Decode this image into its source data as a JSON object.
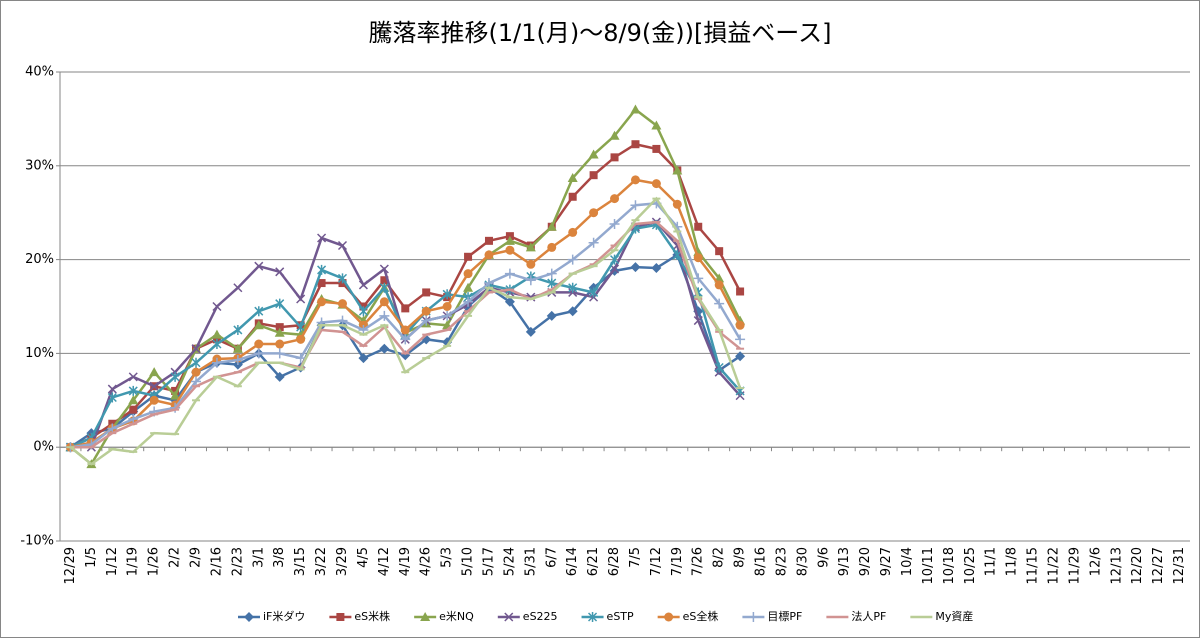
{
  "chart_data": {
    "type": "line",
    "title": "騰落率推移(1/1(月)～8/9(金))[損益ベース]",
    "categories": [
      "12/29",
      "1/5",
      "1/12",
      "1/19",
      "1/26",
      "2/2",
      "2/9",
      "2/16",
      "2/23",
      "3/1",
      "3/8",
      "3/15",
      "3/22",
      "3/29",
      "4/5",
      "4/12",
      "4/19",
      "4/26",
      "5/3",
      "5/10",
      "5/17",
      "5/24",
      "5/31",
      "6/7",
      "6/14",
      "6/21",
      "6/28",
      "7/5",
      "7/12",
      "7/19",
      "7/26",
      "8/2",
      "8/9",
      "8/16",
      "8/23",
      "8/30",
      "9/6",
      "9/13",
      "9/20",
      "9/27",
      "10/4",
      "10/11",
      "10/18",
      "10/25",
      "11/1",
      "11/8",
      "11/15",
      "11/22",
      "11/29",
      "12/6",
      "12/13",
      "12/20",
      "12/27",
      "12/31"
    ],
    "ylim": [
      -10,
      40
    ],
    "yticks": [
      {
        "value": -10,
        "label": "-10%"
      },
      {
        "value": 0,
        "label": "0%"
      },
      {
        "value": 10,
        "label": "10%"
      },
      {
        "value": 20,
        "label": "20%"
      },
      {
        "value": 30,
        "label": "30%"
      },
      {
        "value": 40,
        "label": "40%"
      }
    ],
    "grid": true,
    "legend": "bottom",
    "series": [
      {
        "name": "iF米ダウ",
        "color": "#4572a7",
        "marker": "diamond",
        "values": [
          0,
          1.5,
          2.0,
          3.8,
          5.5,
          5.0,
          8.0,
          9.0,
          8.8,
          10.0,
          7.5,
          8.5,
          13.0,
          13.0,
          9.5,
          10.5,
          9.8,
          11.5,
          11.2,
          15.0,
          17.0,
          15.5,
          12.3,
          14.0,
          14.5,
          17.0,
          18.8,
          19.2,
          19.1,
          20.5,
          14.5,
          8.2,
          9.7,
          null,
          null,
          null,
          null,
          null,
          null,
          null,
          null,
          null,
          null,
          null,
          null,
          null,
          null,
          null,
          null,
          null,
          null,
          null,
          null,
          null
        ]
      },
      {
        "name": "eS米株",
        "color": "#aa4643",
        "marker": "square",
        "values": [
          0,
          1.0,
          2.5,
          4.0,
          6.5,
          6.0,
          10.5,
          11.5,
          10.5,
          13.2,
          12.8,
          13.0,
          17.5,
          17.5,
          15.0,
          17.8,
          14.8,
          16.5,
          16.0,
          20.3,
          22.0,
          22.5,
          21.5,
          23.5,
          26.7,
          29.0,
          30.9,
          32.3,
          31.8,
          29.5,
          23.5,
          20.9,
          16.6,
          null,
          null,
          null,
          null,
          null,
          null,
          null,
          null,
          null,
          null,
          null,
          null,
          null,
          null,
          null,
          null,
          null,
          null,
          null,
          null,
          null
        ]
      },
      {
        "name": "e米NQ",
        "color": "#89a54e",
        "marker": "triangle",
        "values": [
          0,
          -1.8,
          2.0,
          5.0,
          8.0,
          5.5,
          10.5,
          12.0,
          10.5,
          13.0,
          12.2,
          12.0,
          15.8,
          15.2,
          13.5,
          17.0,
          12.2,
          13.2,
          13.0,
          17.0,
          20.5,
          22.0,
          21.3,
          23.5,
          28.7,
          31.2,
          33.2,
          36.0,
          34.3,
          29.5,
          20.8,
          18.0,
          13.5,
          null,
          null,
          null,
          null,
          null,
          null,
          null,
          null,
          null,
          null,
          null,
          null,
          null,
          null,
          null,
          null,
          null,
          null,
          null,
          null,
          null
        ]
      },
      {
        "name": "eS225",
        "color": "#71588f",
        "marker": "x",
        "values": [
          0,
          0.0,
          6.2,
          7.5,
          6.5,
          8.0,
          10.5,
          15.0,
          17.0,
          19.3,
          18.7,
          15.8,
          22.3,
          21.5,
          17.3,
          19.0,
          11.5,
          13.5,
          14.0,
          15.2,
          17.0,
          16.5,
          16.0,
          16.5,
          16.5,
          16.0,
          19.0,
          23.5,
          24.0,
          21.5,
          13.5,
          8.0,
          5.5,
          null,
          null,
          null,
          null,
          null,
          null,
          null,
          null,
          null,
          null,
          null,
          null,
          null,
          null,
          null,
          null,
          null,
          null,
          null,
          null,
          null
        ]
      },
      {
        "name": "eSTP",
        "color": "#4198af",
        "marker": "asterisk",
        "values": [
          0,
          1.0,
          5.3,
          6.0,
          5.5,
          7.5,
          9.0,
          11.0,
          12.5,
          14.5,
          15.3,
          12.8,
          18.9,
          18.0,
          14.5,
          17.0,
          12.0,
          14.5,
          16.3,
          16.0,
          17.3,
          16.8,
          18.2,
          17.5,
          17.0,
          16.5,
          20.0,
          23.3,
          23.7,
          20.5,
          16.5,
          8.5,
          6.0,
          null,
          null,
          null,
          null,
          null,
          null,
          null,
          null,
          null,
          null,
          null,
          null,
          null,
          null,
          null,
          null,
          null,
          null,
          null,
          null,
          null
        ]
      },
      {
        "name": "eS全株",
        "color": "#db843d",
        "marker": "circle",
        "values": [
          0,
          0.5,
          2.0,
          2.8,
          5.0,
          4.5,
          8.0,
          9.4,
          9.5,
          11.0,
          11.0,
          11.5,
          15.5,
          15.3,
          13.0,
          15.5,
          12.5,
          14.5,
          15.0,
          18.5,
          20.5,
          21.0,
          19.5,
          21.3,
          22.9,
          25.0,
          26.5,
          28.5,
          28.1,
          25.9,
          20.2,
          17.3,
          13.0,
          null,
          null,
          null,
          null,
          null,
          null,
          null,
          null,
          null,
          null,
          null,
          null,
          null,
          null,
          null,
          null,
          null,
          null,
          null,
          null,
          null
        ]
      },
      {
        "name": "目標PF",
        "color": "#93a9cf",
        "marker": "plus",
        "values": [
          0,
          0.3,
          2.0,
          3.0,
          3.8,
          4.2,
          7.0,
          9.0,
          9.3,
          10.0,
          10.0,
          9.5,
          13.3,
          13.5,
          12.5,
          14.0,
          11.5,
          13.5,
          14.0,
          15.5,
          17.5,
          18.5,
          17.8,
          18.5,
          20.0,
          21.8,
          23.8,
          25.8,
          26.0,
          23.5,
          18.0,
          15.3,
          11.5,
          null,
          null,
          null,
          null,
          null,
          null,
          null,
          null,
          null,
          null,
          null,
          null,
          null,
          null,
          null,
          null,
          null,
          null,
          null,
          null,
          null
        ]
      },
      {
        "name": "法人PF",
        "color": "#d19392",
        "marker": "dash",
        "values": [
          0,
          0.0,
          1.5,
          2.5,
          3.5,
          4.0,
          6.5,
          7.5,
          8.0,
          9.0,
          9.0,
          8.5,
          12.5,
          12.3,
          10.8,
          12.8,
          10.0,
          12.0,
          12.5,
          14.5,
          16.5,
          16.8,
          15.8,
          16.8,
          18.5,
          19.5,
          21.5,
          23.8,
          24.0,
          22.0,
          15.8,
          12.3,
          10.5,
          null,
          null,
          null,
          null,
          null,
          null,
          null,
          null,
          null,
          null,
          null,
          null,
          null,
          null,
          null,
          null,
          null,
          null,
          null,
          null,
          null
        ]
      },
      {
        "name": "My資産",
        "color": "#b9cd96",
        "marker": "dash",
        "values": [
          0,
          -1.8,
          -0.2,
          -0.5,
          1.5,
          1.4,
          5.0,
          7.5,
          6.5,
          9.0,
          9.0,
          8.3,
          13.0,
          13.0,
          12.0,
          13.0,
          8.0,
          9.5,
          10.8,
          14.0,
          17.0,
          16.0,
          15.8,
          16.5,
          18.5,
          19.3,
          21.0,
          24.2,
          26.5,
          23.0,
          16.0,
          12.5,
          6.3,
          null,
          null,
          null,
          null,
          null,
          null,
          null,
          null,
          null,
          null,
          null,
          null,
          null,
          null,
          null,
          null,
          null,
          null,
          null,
          null,
          null
        ]
      }
    ]
  }
}
